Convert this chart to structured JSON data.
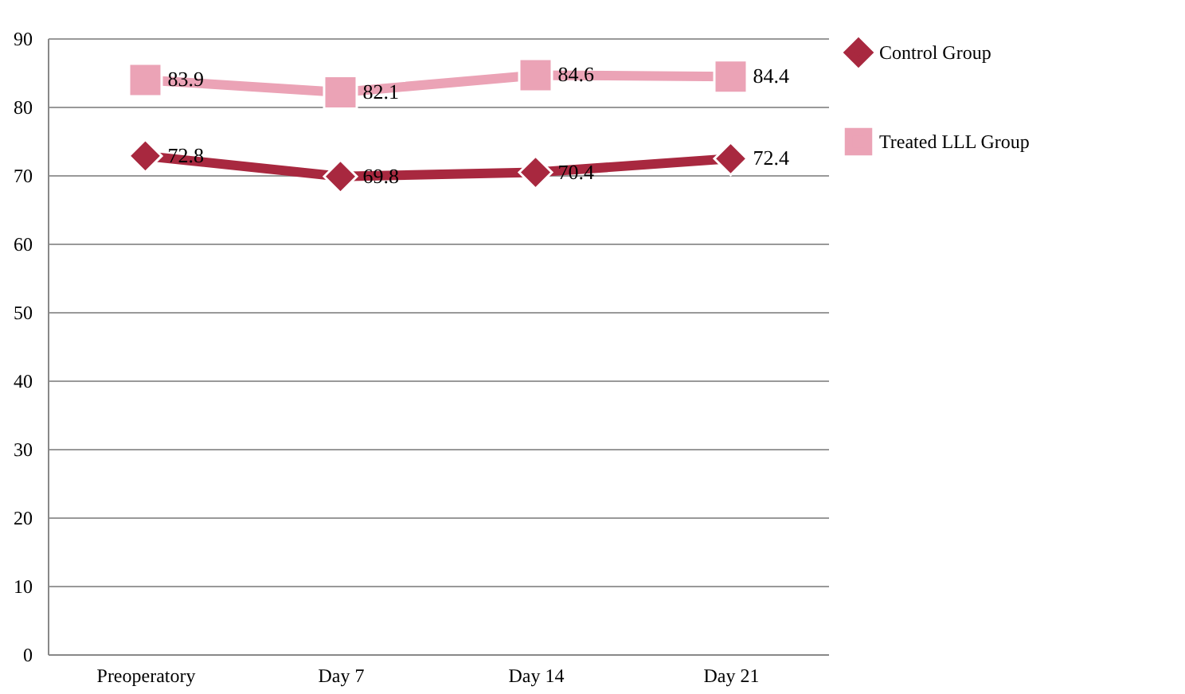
{
  "chart_data": {
    "type": "line",
    "categories": [
      "Preoperatory",
      "Day 7",
      "Day 14",
      "Day 21"
    ],
    "series": [
      {
        "name": "Control Group",
        "color": "#a8283f",
        "values": [
          72.8,
          69.8,
          70.4,
          72.4
        ],
        "marker": "diamond"
      },
      {
        "name": "Treated LLL Group",
        "color": "#eba3b6",
        "values": [
          83.9,
          82.1,
          84.6,
          84.4
        ],
        "marker": "square"
      }
    ],
    "ylim": [
      0,
      90
    ],
    "yticks": [
      0,
      10,
      20,
      30,
      40,
      50,
      60,
      70,
      80,
      90
    ],
    "grid": "y",
    "legend": "right",
    "data_labels": true
  }
}
